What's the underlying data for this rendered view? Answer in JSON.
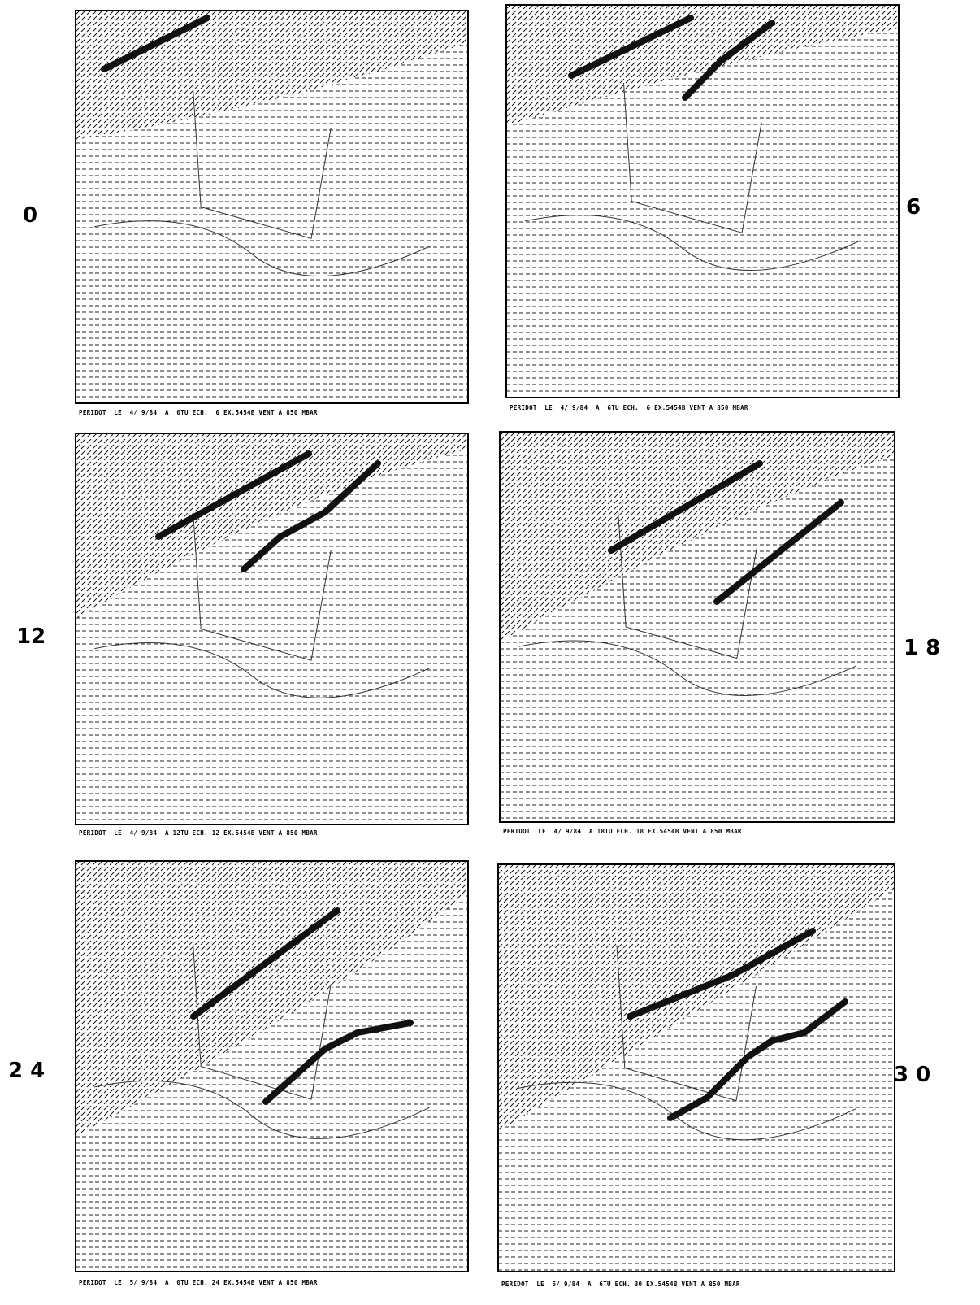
{
  "panels": [
    {
      "label": "0",
      "caption": "PERIDOT  LE  4/ 9/84  A  0TU ECH.  0 EX.5454B VENT A 850 MBAR"
    },
    {
      "label": "6",
      "caption": "PERIDOT  LE  4/ 9/84  A  6TU ECH.  6 EX.5454B VENT A 850 MBAR"
    },
    {
      "label": "12",
      "caption": "PERIDOT  LE  4/ 9/84  A 12TU ECH. 12 EX.5454B VENT A 850 MBAR"
    },
    {
      "label": "1 8",
      "caption": "PERIDOT  LE  4/ 9/84  A 18TU ECH. 18 EX.5454B VENT A 850 MBAR"
    },
    {
      "label": "2 4",
      "caption": "PERIDOT  LE  5/ 9/84  A  0TU ECH. 24 EX.5454B VENT A 850 MBAR"
    },
    {
      "label": "3 0",
      "caption": "PERIDOT  LE  5/ 9/84  A  6TU ECH. 30 EX.5454B VENT A 850 MBAR"
    }
  ]
}
